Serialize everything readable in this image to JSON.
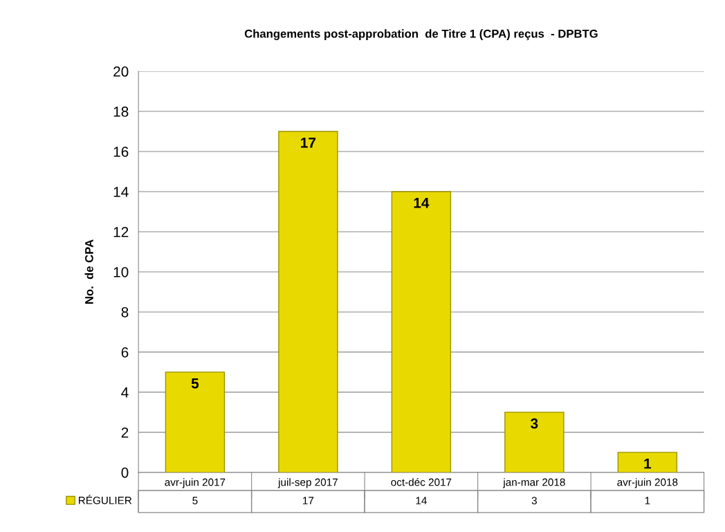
{
  "chart_data": {
    "type": "bar",
    "title": "Changements post-approbation  de Titre 1 (CPA) reçus  - DPBTG",
    "ylabel": "No.  de CPA",
    "categories": [
      "avr-juin 2017",
      "juil-sep 2017",
      "oct-déc 2017",
      "jan-mar 2018",
      "avr-juin 2018"
    ],
    "series": [
      {
        "name": "RÉGULIER",
        "color": "#e8da00",
        "values": [
          5,
          17,
          14,
          3,
          1
        ]
      }
    ],
    "ylim": [
      0,
      20
    ],
    "yticks": [
      0,
      2,
      4,
      6,
      8,
      10,
      12,
      14,
      16,
      18,
      20
    ],
    "grid": "y",
    "data_labels": true,
    "legend": "bottom",
    "annotations": [
      "5",
      "17",
      "14",
      "3",
      "1"
    ]
  }
}
